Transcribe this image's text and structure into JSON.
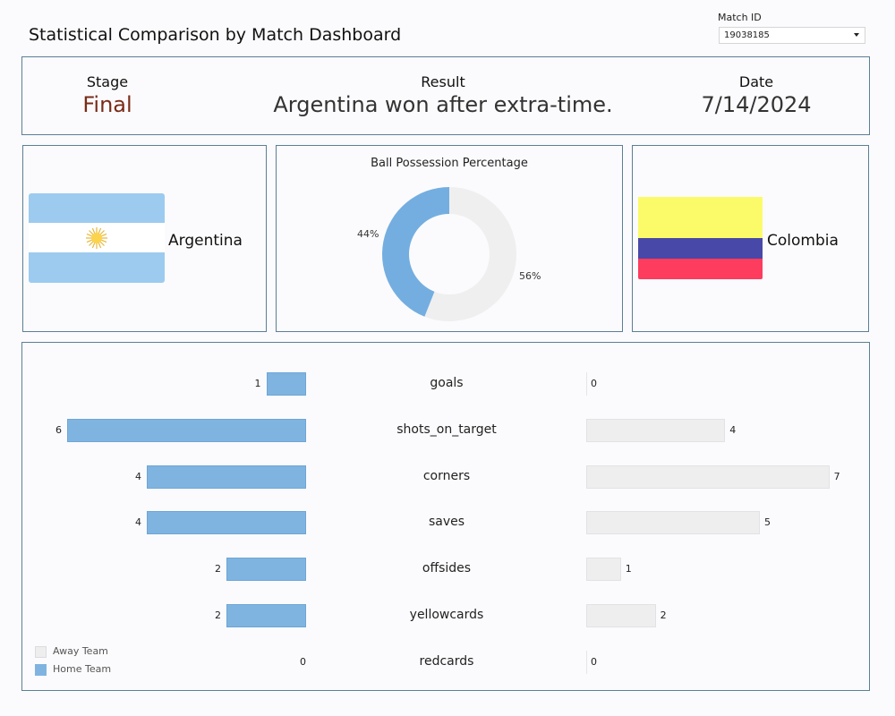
{
  "header": {
    "title": "Statistical Comparison by Match Dashboard",
    "match_id_label": "Match ID",
    "match_id_value": "19038185"
  },
  "info": {
    "stage_label": "Stage",
    "stage_value": "Final",
    "result_label": "Result",
    "result_value": "Argentina won after extra-time.",
    "date_label": "Date",
    "date_value": "7/14/2024"
  },
  "teams": {
    "home": {
      "name": "Argentina",
      "flag_icon": "argentina-flag-icon"
    },
    "away": {
      "name": "Colombia",
      "flag_icon": "colombia-flag-icon"
    }
  },
  "possession": {
    "title": "Ball Possession Percentage",
    "home_label": "44%",
    "away_label": "56%",
    "home_value": 44,
    "away_value": 56,
    "home_color": "#74aee0",
    "away_color": "#efeff0"
  },
  "stats": {
    "rows": [
      {
        "label": "goals",
        "home": 1,
        "away": 0
      },
      {
        "label": "shots_on_target",
        "home": 6,
        "away": 4
      },
      {
        "label": "corners",
        "home": 4,
        "away": 7
      },
      {
        "label": "saves",
        "home": 4,
        "away": 5
      },
      {
        "label": "offsides",
        "home": 2,
        "away": 1
      },
      {
        "label": "yellowcards",
        "home": 2,
        "away": 2
      },
      {
        "label": "redcards",
        "home": 0,
        "away": 0
      }
    ],
    "home_color": "#7fb4e0",
    "away_color": "#eeeeef"
  },
  "legend": {
    "away_label": "Away Team",
    "home_label": "Home Team"
  },
  "chart_data": [
    {
      "type": "pie",
      "title": "Ball Possession Percentage",
      "categories": [
        "Home Team",
        "Away Team"
      ],
      "values": [
        44,
        56
      ]
    },
    {
      "type": "bar",
      "categories": [
        "goals",
        "shots_on_target",
        "corners",
        "saves",
        "offsides",
        "yellowcards",
        "redcards"
      ],
      "series": [
        {
          "name": "Home Team",
          "values": [
            1,
            6,
            4,
            4,
            2,
            2,
            0
          ]
        },
        {
          "name": "Away Team",
          "values": [
            0,
            4,
            7,
            5,
            1,
            2,
            0
          ]
        }
      ],
      "legend": "bottom-left"
    }
  ]
}
